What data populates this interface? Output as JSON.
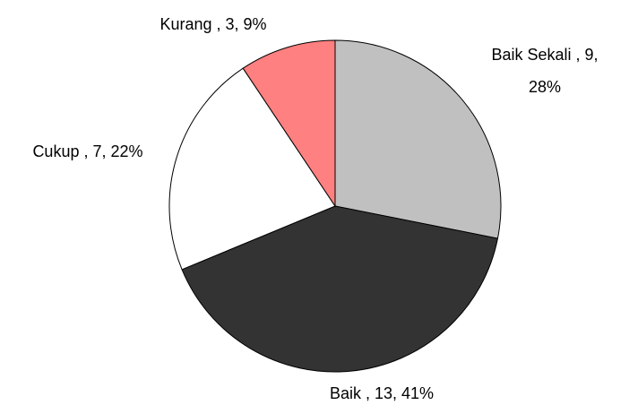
{
  "chart_data": {
    "type": "pie",
    "categories": [
      "Baik Sekali",
      "Baik",
      "Cukup",
      "Kurang"
    ],
    "values": [
      9,
      13,
      7,
      3
    ],
    "percents": [
      28,
      41,
      22,
      9
    ],
    "percent_labels": [
      "28%",
      "41%",
      "22%",
      "9%"
    ],
    "colors": [
      "#c0c0c0",
      "#333333",
      "#ffffff",
      "#ff8080"
    ]
  }
}
